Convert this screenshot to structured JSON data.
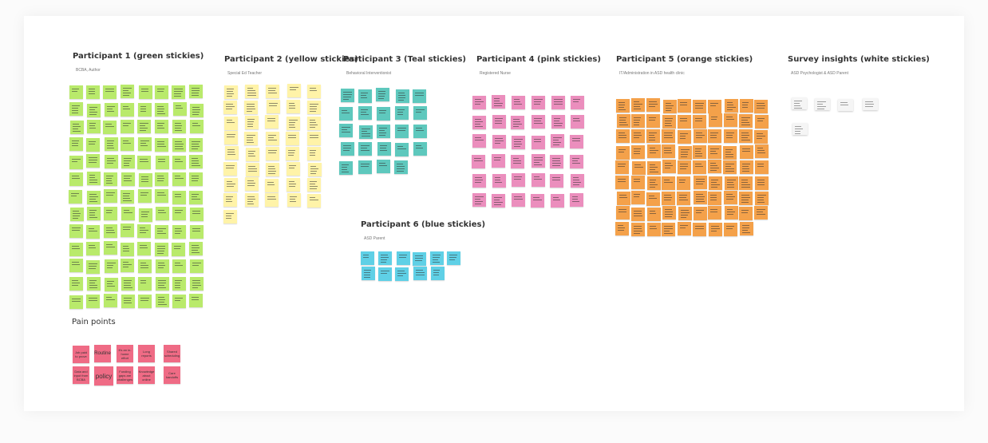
{
  "board": {
    "background": "#ffffff",
    "groups": [
      {
        "id": "g1",
        "title": "Participant 1 (green stickies)",
        "subtitle": "BCBA, Author",
        "color": "#b9ea6b",
        "note_count": 104
      },
      {
        "id": "g2",
        "title": "Participant 2 (yellow stickies)",
        "subtitle": "Special Ed Teacher",
        "color": "#fff3a8",
        "note_count": 41
      },
      {
        "id": "g3",
        "title": "Participant 3 (Teal stickies)",
        "subtitle": "Behavioral Interventionist",
        "color": "#5ec8bd",
        "note_count": 24
      },
      {
        "id": "g4",
        "title": "Participant 4 (pink stickies)",
        "subtitle": "Registered Nurse",
        "color": "#eb8ebd",
        "note_count": 36
      },
      {
        "id": "g5",
        "title": "Participant 5 (orange stickies)",
        "subtitle": "IT/Administration in ASD health clinic",
        "color": "#f4a14a",
        "note_count": 89
      },
      {
        "id": "g6",
        "title": "Participant 6 (blue stickies)",
        "subtitle": "ASD Parent",
        "color": "#5fd0e6",
        "note_count": 11
      },
      {
        "id": "g7",
        "title": "Survey insights (white stickies)",
        "subtitle": "ASD Psychologist & ASD Parent",
        "color": "#f5f5f5",
        "note_count": 5
      }
    ],
    "pain_points": {
      "title": "Pain points",
      "color": "#ef6b85",
      "notes": [
        "Job paid to prove",
        "Routine",
        "It's an in-home effort",
        "Long reports",
        "Shared scheduling",
        "Data and input from BCBA",
        "policy",
        "Funding gaps are challenges",
        "Knowledge about online",
        "Care handoffs"
      ]
    }
  }
}
